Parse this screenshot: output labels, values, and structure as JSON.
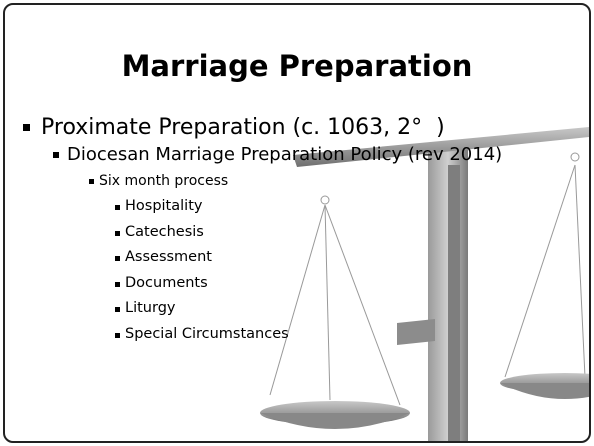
{
  "title": "Marriage Preparation",
  "bullets": [
    {
      "text": "Proximate Preparation (c. 1063, 2°  )",
      "children": [
        {
          "text": "Diocesan Marriage Preparation Policy (rev 2014)",
          "children": [
            {
              "text": "Six month process",
              "children": [
                {
                  "text": "Hospitality"
                },
                {
                  "text": "Catechesis"
                },
                {
                  "text": "Assessment"
                },
                {
                  "text": "Documents"
                },
                {
                  "text": "Liturgy"
                },
                {
                  "text": "Special Circumstances"
                }
              ]
            }
          ]
        }
      ]
    }
  ]
}
